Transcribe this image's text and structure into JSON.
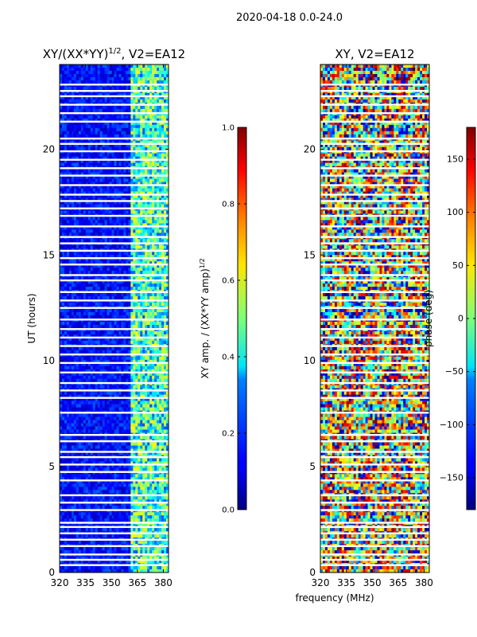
{
  "suptitle": "2020-04-18 0.0-24.0",
  "xlabel_shared": "frequency (MHz)",
  "chart_data": [
    {
      "type": "heatmap",
      "title": "XY/(XX*YY)^{1/2}, V2=EA12",
      "title_main": "XY/(XX*YY)",
      "title_exp": "1/2",
      "title_tail": ", V2=EA12",
      "xlabel": "",
      "ylabel": "UT (hours)",
      "xlim": [
        320,
        383
      ],
      "ylim": [
        0,
        24
      ],
      "xticks": [
        320,
        335,
        350,
        365,
        380
      ],
      "yticks": [
        0,
        5,
        10,
        15,
        20
      ],
      "colorbar": {
        "label": "XY amp. / (XX*YY amp)^{1/2}",
        "label_main": "XY amp. / (XX*YY amp)",
        "label_exp": "1/2",
        "range": [
          0.0,
          1.0
        ],
        "ticks": [
          0.0,
          0.2,
          0.4,
          0.6,
          0.8,
          1.0
        ],
        "tick_labels": [
          "0.0",
          "0.2",
          "0.4",
          "0.6",
          "0.8",
          "1.0"
        ]
      },
      "colormap": "jet",
      "flagged_ut": [
        0.35,
        0.6,
        0.85,
        1.25,
        1.55,
        1.85,
        2.15,
        2.35,
        2.95,
        3.3,
        3.65,
        4.35,
        4.75,
        5.1,
        5.45,
        5.7,
        6.2,
        6.5,
        7.55,
        8.25,
        8.6,
        8.95,
        9.45,
        9.9,
        10.3,
        10.7,
        11.1,
        11.5,
        11.95,
        12.5,
        12.85,
        13.25,
        13.8,
        14.05,
        14.55,
        14.85,
        15.2,
        15.55,
        15.85,
        16.35,
        16.85,
        17.2,
        17.55,
        17.85,
        18.3,
        18.75,
        19.1,
        19.5,
        19.9,
        20.25,
        20.5,
        21.3,
        21.7,
        22.1,
        22.5,
        22.75,
        23.05
      ]
    },
    {
      "type": "heatmap",
      "title": "XY, V2=EA12",
      "xlabel": "frequency (MHz)",
      "ylabel": "",
      "xlim": [
        320,
        383
      ],
      "ylim": [
        0,
        24
      ],
      "xticks": [
        320,
        335,
        350,
        365,
        380
      ],
      "yticks": [
        0,
        5,
        10,
        15,
        20
      ],
      "colorbar": {
        "label": "phase (deg)",
        "range": [
          -180,
          180
        ],
        "ticks": [
          -150,
          -100,
          -50,
          0,
          50,
          100,
          150
        ],
        "tick_labels": [
          "−150",
          "−100",
          "−50",
          "0",
          "50",
          "100",
          "150"
        ]
      },
      "colormap": "jet",
      "flagged_ut": [
        0.35,
        0.6,
        0.85,
        1.25,
        1.55,
        1.85,
        2.15,
        2.35,
        2.95,
        3.3,
        3.65,
        4.35,
        4.75,
        5.1,
        5.45,
        5.7,
        6.2,
        6.5,
        7.55,
        8.25,
        8.6,
        8.95,
        9.45,
        9.9,
        10.3,
        10.7,
        11.1,
        11.5,
        11.95,
        12.5,
        12.85,
        13.25,
        13.8,
        14.05,
        14.55,
        14.85,
        15.2,
        15.55,
        15.85,
        16.35,
        16.85,
        17.2,
        17.55,
        17.85,
        18.3,
        18.75,
        19.1,
        19.5,
        19.9,
        20.25,
        20.5,
        21.3,
        21.7,
        22.1,
        22.5,
        22.75,
        23.05
      ]
    }
  ]
}
